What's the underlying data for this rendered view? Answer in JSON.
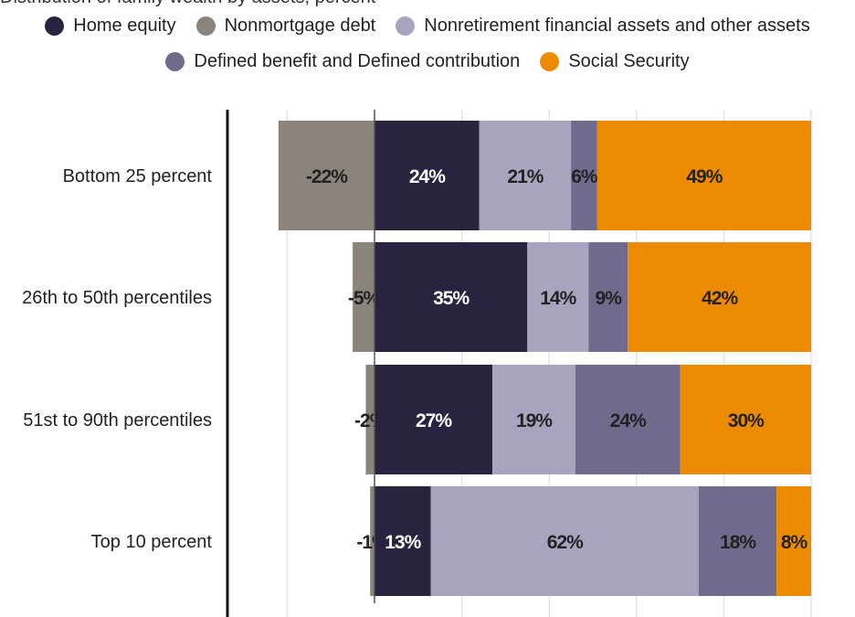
{
  "chart_data": {
    "type": "bar",
    "orientation": "horizontal",
    "stacked": true,
    "title": "Distribution of family wealth by assets, percent",
    "categories": [
      "Bottom 25 percent",
      "26th to 50th percentiles",
      "51st to 90th percentiles",
      "Top 10 percent"
    ],
    "series": [
      {
        "name": "Nonmortgage debt",
        "color": "#8a847c",
        "values": [
          -22,
          -5,
          -2,
          -1
        ]
      },
      {
        "name": "Home equity",
        "color": "#29233f",
        "values": [
          24,
          35,
          27,
          13
        ]
      },
      {
        "name": "Nonretirement financial assets and other assets",
        "color": "#a8a4bf",
        "values": [
          21,
          14,
          19,
          62
        ]
      },
      {
        "name": "Defined benefit and Defined contribution",
        "color": "#706a8c",
        "values": [
          6,
          9,
          24,
          18
        ]
      },
      {
        "name": "Social Security",
        "color": "#ed8b00",
        "values": [
          49,
          42,
          30,
          8
        ]
      }
    ],
    "legend_order": [
      "Home equity",
      "Nonmortgage debt",
      "Nonretirement financial assets and other assets",
      "Defined benefit and Defined contribution",
      "Social Security"
    ],
    "xlim": [
      -22,
      100
    ],
    "grid_step": 20,
    "grid": true,
    "legend_placement": "top",
    "data_labels": true
  }
}
